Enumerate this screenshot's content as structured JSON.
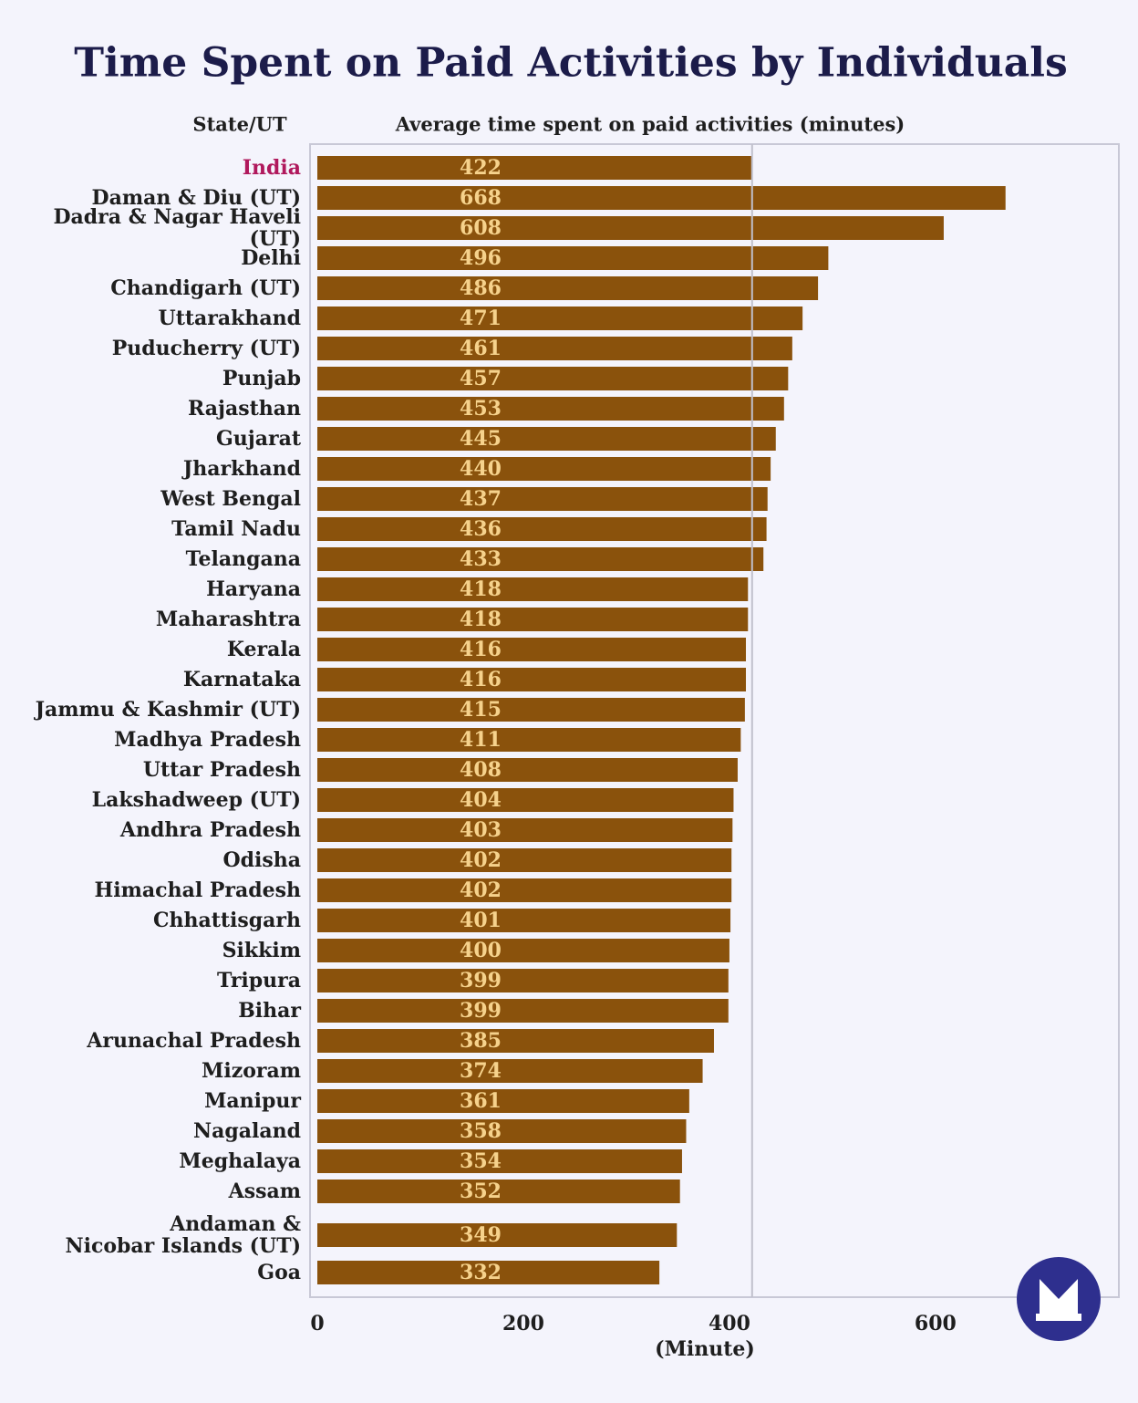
{
  "chart_data": {
    "type": "bar",
    "orientation": "horizontal",
    "title": "Time Spent on Paid Activities by Individuals",
    "category_header": "State/UT",
    "value_header": "Average time spent on paid activities (minutes)",
    "x_label": "(Minute)",
    "categories": [
      "India",
      "Daman & Diu (UT)",
      "Dadra & Nagar Haveli (UT)",
      "Delhi",
      "Chandigarh (UT)",
      "Uttarakhand",
      "Puducherry (UT)",
      "Punjab",
      "Rajasthan",
      "Gujarat",
      "Jharkhand",
      "West Bengal",
      "Tamil Nadu",
      "Telangana",
      "Haryana",
      "Maharashtra",
      "Kerala",
      "Karnataka",
      "Jammu & Kashmir (UT)",
      "Madhya Pradesh",
      "Uttar Pradesh",
      "Lakshadweep (UT)",
      "Andhra Pradesh",
      "Odisha",
      "Himachal Pradesh",
      "Chhattisgarh",
      "Sikkim",
      "Tripura",
      "Bihar",
      "Arunachal Pradesh",
      "Mizoram",
      "Manipur",
      "Nagaland",
      "Meghalaya",
      "Assam",
      "Andaman &\nNicobar Islands (UT)",
      "Goa"
    ],
    "values": [
      422,
      668,
      608,
      496,
      486,
      471,
      461,
      457,
      453,
      445,
      440,
      437,
      436,
      433,
      418,
      418,
      416,
      416,
      415,
      411,
      408,
      404,
      403,
      402,
      402,
      401,
      400,
      399,
      399,
      385,
      374,
      361,
      358,
      354,
      352,
      349,
      332
    ],
    "color": "#8a520c",
    "highlight_color": "#b0185c",
    "xlim": [
      0,
      778
    ],
    "xticks": [
      0,
      200,
      400,
      600
    ]
  }
}
